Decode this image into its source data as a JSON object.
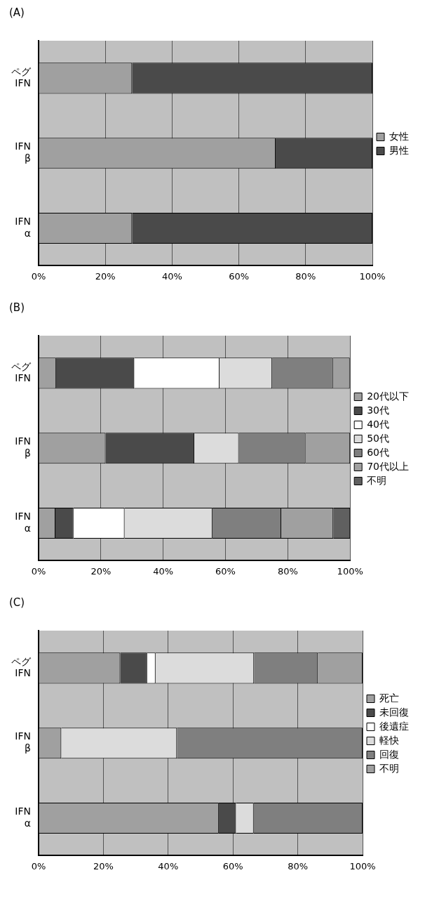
{
  "chart_data": [
    {
      "type": "bar",
      "title": "(A)",
      "orientation": "horizontal",
      "stacked": true,
      "categories": [
        "ペグ IFN",
        "IFN β",
        "IFN α"
      ],
      "xlim": [
        0,
        100
      ],
      "xticks": [
        {
          "value": 0,
          "label": "0%"
        },
        {
          "value": 20,
          "label": "20%"
        },
        {
          "value": 40,
          "label": "40%"
        },
        {
          "value": 60,
          "label": "60%"
        },
        {
          "value": 80,
          "label": "80%"
        },
        {
          "value": 100,
          "label": "100%"
        }
      ],
      "grid": "x",
      "legend": "right",
      "series": [
        {
          "name": "女性",
          "color": "#a0a0a0",
          "values": [
            28,
            71,
            28
          ]
        },
        {
          "name": "男性",
          "color": "#4a4a4a",
          "values": [
            72,
            29,
            72
          ]
        }
      ]
    },
    {
      "type": "bar",
      "title": "(B)",
      "orientation": "horizontal",
      "stacked": true,
      "categories": [
        "ペグ IFN",
        "IFN β",
        "IFN α"
      ],
      "xlim": [
        0,
        100
      ],
      "xticks": [
        {
          "value": 0,
          "label": "0%"
        },
        {
          "value": 20,
          "label": "20%"
        },
        {
          "value": 40,
          "label": "40%"
        },
        {
          "value": 60,
          "label": "60%"
        },
        {
          "value": 80,
          "label": "80%"
        },
        {
          "value": 100,
          "label": "100%"
        }
      ],
      "grid": "x",
      "legend": "right",
      "series": [
        {
          "name": "20代以下",
          "color": "#a0a0a0",
          "values": [
            5.6,
            21.5,
            5.4
          ]
        },
        {
          "name": "30代",
          "color": "#4a4a4a",
          "values": [
            25.1,
            28.5,
            5.8
          ]
        },
        {
          "name": "40代",
          "color": "#ffffff",
          "values": [
            27.4,
            0,
            16.4
          ]
        },
        {
          "name": "50代",
          "color": "#dcdcdc",
          "values": [
            16.9,
            14.3,
            28.2
          ]
        },
        {
          "name": "60代",
          "color": "#7f7f7f",
          "values": [
            19.5,
            21.4,
            22.1
          ]
        },
        {
          "name": "70代以上",
          "color": "#a0a0a0",
          "values": [
            5.4,
            14.3,
            16.7
          ]
        },
        {
          "name": "不明",
          "color": "#606060",
          "values": [
            0,
            0,
            5.4
          ]
        }
      ]
    },
    {
      "type": "bar",
      "title": "(C)",
      "orientation": "horizontal",
      "stacked": true,
      "categories": [
        "ペグ IFN",
        "IFN β",
        "IFN α"
      ],
      "xlim": [
        0,
        100
      ],
      "xticks": [
        {
          "value": 0,
          "label": "0%"
        },
        {
          "value": 20,
          "label": "20%"
        },
        {
          "value": 40,
          "label": "40%"
        },
        {
          "value": 60,
          "label": "60%"
        },
        {
          "value": 80,
          "label": "80%"
        },
        {
          "value": 100,
          "label": "100%"
        }
      ],
      "grid": "x",
      "legend": "right",
      "series": [
        {
          "name": "死亡",
          "color": "#a0a0a0",
          "values": [
            25.2,
            7,
            55.6
          ]
        },
        {
          "name": "未回復",
          "color": "#4a4a4a",
          "values": [
            8.3,
            0,
            5.3
          ]
        },
        {
          "name": "後遺症",
          "color": "#ffffff",
          "values": [
            2.6,
            0,
            0
          ]
        },
        {
          "name": "軽快",
          "color": "#dcdcdc",
          "values": [
            30.4,
            35.7,
            5.5
          ]
        },
        {
          "name": "回復",
          "color": "#7f7f7f",
          "values": [
            19.7,
            57.3,
            33.6
          ]
        },
        {
          "name": "不明",
          "color": "#a0a0a0",
          "values": [
            13.8,
            0,
            0
          ]
        }
      ]
    }
  ]
}
